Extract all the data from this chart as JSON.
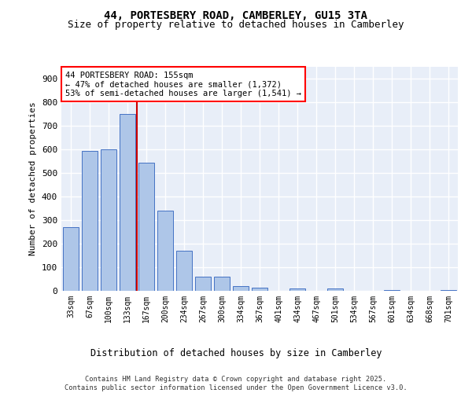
{
  "title_line1": "44, PORTESBERY ROAD, CAMBERLEY, GU15 3TA",
  "title_line2": "Size of property relative to detached houses in Camberley",
  "xlabel": "Distribution of detached houses by size in Camberley",
  "ylabel": "Number of detached properties",
  "categories": [
    "33sqm",
    "67sqm",
    "100sqm",
    "133sqm",
    "167sqm",
    "200sqm",
    "234sqm",
    "267sqm",
    "300sqm",
    "334sqm",
    "367sqm",
    "401sqm",
    "434sqm",
    "467sqm",
    "501sqm",
    "534sqm",
    "567sqm",
    "601sqm",
    "634sqm",
    "668sqm",
    "701sqm"
  ],
  "values": [
    270,
    595,
    600,
    750,
    545,
    340,
    170,
    60,
    60,
    20,
    15,
    0,
    10,
    0,
    10,
    0,
    0,
    5,
    0,
    0,
    5
  ],
  "bar_color": "#aec6e8",
  "bar_edge_color": "#4472c4",
  "annotation_line1": "44 PORTESBERY ROAD: 155sqm",
  "annotation_line2": "← 47% of detached houses are smaller (1,372)",
  "annotation_line3": "53% of semi-detached houses are larger (1,541) →",
  "vline_color": "#cc0000",
  "background_color": "#e8eef8",
  "grid_color": "#ffffff",
  "footnote": "Contains HM Land Registry data © Crown copyright and database right 2025.\nContains public sector information licensed under the Open Government Licence v3.0.",
  "ylim": [
    0,
    950
  ],
  "yticks": [
    0,
    100,
    200,
    300,
    400,
    500,
    600,
    700,
    800,
    900
  ]
}
